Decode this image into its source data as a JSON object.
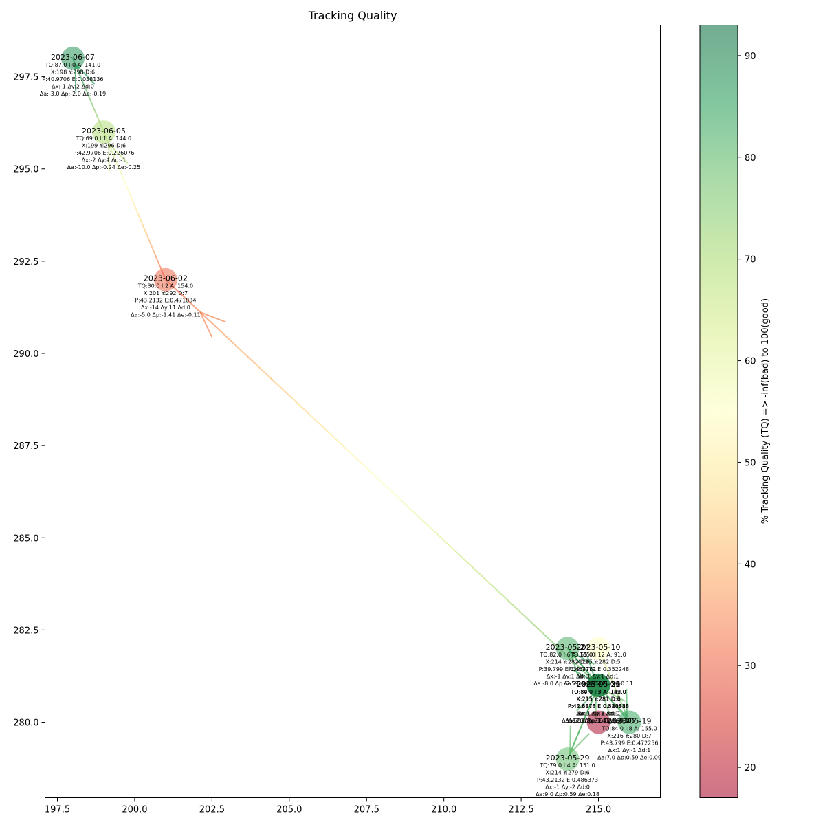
{
  "chart_data": {
    "type": "scatter",
    "title": "Tracking Quality",
    "xlabel": "",
    "ylabel": "",
    "xlim": [
      197.1,
      217.0
    ],
    "ylim": [
      277.95,
      298.9
    ],
    "x_ticks": [
      197.5,
      200.0,
      202.5,
      205.0,
      207.5,
      210.0,
      212.5,
      215.0
    ],
    "x_tick_labels": [
      "197.5",
      "200.0",
      "202.5",
      "205.0",
      "207.5",
      "210.0",
      "212.5",
      "215.0"
    ],
    "y_ticks": [
      280.0,
      282.5,
      285.0,
      287.5,
      290.0,
      292.5,
      295.0,
      297.5
    ],
    "y_tick_labels": [
      "280.0",
      "282.5",
      "285.0",
      "287.5",
      "290.0",
      "292.5",
      "295.0",
      "297.5"
    ],
    "grid": false,
    "colorbar": {
      "label": "% Tracking Quality (TQ) => -inf(bad) to 100(good)",
      "range": [
        17,
        93
      ],
      "ticks": [
        20,
        30,
        40,
        50,
        60,
        70,
        80,
        90
      ],
      "tick_labels": [
        "20",
        "30",
        "40",
        "50",
        "60",
        "70",
        "80",
        "90"
      ],
      "colormap": "RdYlGn",
      "colors": [
        "#a50026",
        "#d73027",
        "#f46d43",
        "#fdae61",
        "#fee08b",
        "#ffffbf",
        "#d9ef8b",
        "#a6d96a",
        "#66bd63",
        "#1a9850",
        "#006837"
      ]
    },
    "points": [
      {
        "date": "2023-05-10",
        "x": 215,
        "y": 282,
        "tq": 55.0,
        "info": [
          "TQ:55.0 I:12 A: 91.0",
          "X:215 Y:282 D:5",
          "P:32.7279 E:0.352248",
          "Δx:1 Δy:1 Δd:1",
          "Δa:26.0 Δp:5.41 Δe:-0.11"
        ]
      },
      {
        "date": "2023-05-19",
        "x": 216,
        "y": 280,
        "tq": 84.0,
        "info": [
          "TQ:84.0 I:8 A: 155.0",
          "X:216 Y:280 D:7",
          "P:43.799 E:0.472256",
          "Δx:1 Δy:-1 Δd:1",
          "Δa:7.0 Δp:0.59 Δe:0.09"
        ]
      },
      {
        "date": "2023-05-22",
        "x": 215,
        "y": 281,
        "tq": 77.0,
        "info": [
          "TQ:77.0 I:7 A: 143.0",
          "X:215 Y:281 D:6",
          "P:42.3848 E:0.421223",
          "Δx:-1 Δy:1 Δd:-1",
          "Δa:-12.0 Δp:-1.41 Δe:-0.05"
        ]
      },
      {
        "date": "2023-05-24",
        "x": 214,
        "y": 282,
        "tq": 82.0,
        "info": [
          "TQ:82.0 I:6 A: 135.0",
          "X:214 Y:282 D:6",
          "P:39.799 E:0.464761",
          "Δx:-1 Δy:1 Δd:0",
          "Δa:-8.0 Δp:-2.59 Δe:0.04"
        ]
      },
      {
        "date": "2023-05-26",
        "x": 215,
        "y": 281,
        "tq": 84.0,
        "info": [
          "TQ:84.0 I:5 A: 142.0",
          "X:215 Y:281 D:6",
          "P:42.6274 E:0.310634",
          "Δx:1 Δy:-1 Δd:0",
          "Δa:7.0 Δp:2.83 Δe:-0.15"
        ]
      },
      {
        "date": "2023-05-29",
        "x": 214,
        "y": 279,
        "tq": 79.0,
        "info": [
          "TQ:79.0 I:4 A: 151.0",
          "X:214 Y:279 D:6",
          "P:43.2132 E:0.486373",
          "Δx:-1 Δy:-2 Δd:0",
          "Δa:9.0 Δp:0.59 Δe:0.18"
        ]
      },
      {
        "date": "2023-05-31",
        "x": 215,
        "y": 281,
        "tq": 80.0,
        "info": [
          "TQ:80.0 I:3 A: 159.0",
          "X:215 Y:281 D:7",
          "P:44.6274 E:0.584648",
          "Δx:1 Δy:2 Δd:1",
          "Δa:8.0 Δp:1.41 Δe:0.1"
        ]
      },
      {
        "date": "2023-06-02",
        "x": 201,
        "y": 292,
        "tq": 30.0,
        "info": [
          "TQ:30.0 I:2 A: 154.0",
          "X:201 Y:292 D:7",
          "P:43.2132 E:0.471834",
          "Δx:-14 Δy:11 Δd:0",
          "Δa:-5.0 Δp:-1.41 Δe:-0.11"
        ]
      },
      {
        "date": "2023-06-05",
        "x": 199,
        "y": 296,
        "tq": 69.0,
        "info": [
          "TQ:69.0 I:1 A: 144.0",
          "X:199 Y:296 D:6",
          "P:42.9706 E:0.226076",
          "Δx:-2 Δy:4 Δd:-1",
          "Δa:-10.0 Δp:-0.24 Δe:-0.25"
        ]
      },
      {
        "date": "2023-06-07",
        "x": 198,
        "y": 298,
        "tq": 87.0,
        "info": [
          "TQ:87.0 I:0 A: 141.0",
          "X:198 Y:298 D:6",
          "P:40.9706 E:0.038136",
          "Δx:-1 Δy:2 Δd:0",
          "Δa:-3.0 Δp:-2.0 Δe:-0.19"
        ]
      }
    ],
    "extra_markers": [
      {
        "x": 215,
        "y": 280,
        "tq": 17.0
      },
      {
        "x": 215,
        "y": 281,
        "tq": 93.0
      }
    ],
    "arrows": [
      {
        "from": 0,
        "to": 1
      },
      {
        "from": 1,
        "to": 2
      },
      {
        "from": 2,
        "to": 3
      },
      {
        "from": 3,
        "to": 4
      },
      {
        "from": 4,
        "to": 5
      },
      {
        "from": 5,
        "to": 6
      },
      {
        "from": 6,
        "to": 7
      },
      {
        "from": 7,
        "to": 8
      },
      {
        "from": 8,
        "to": 9
      }
    ]
  }
}
